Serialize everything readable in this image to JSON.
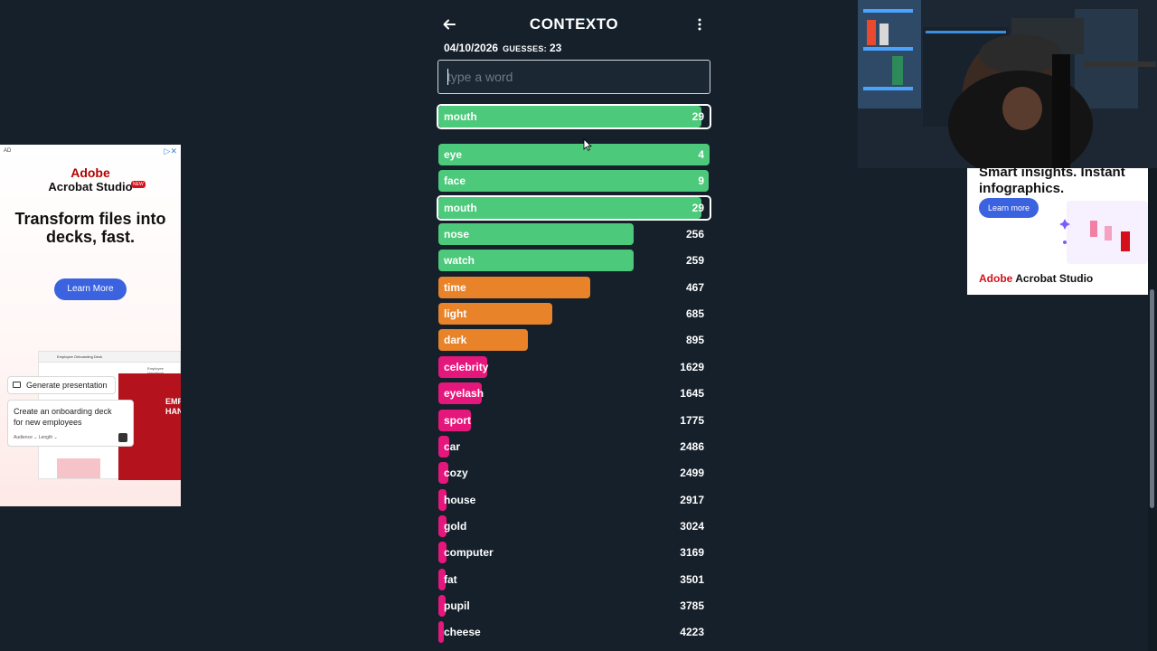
{
  "game": {
    "title": "CONTEXTO",
    "date": "04/10/2026",
    "guesses_label": "GUESSES:",
    "guesses_count": "23",
    "input_placeholder": "type a word",
    "last_guess": {
      "word": "mouth",
      "rank": "29",
      "fill": 0.97,
      "color": "#4cc97a"
    },
    "guesses": [
      {
        "word": "eye",
        "rank": "4",
        "fill": 1.0,
        "color": "#4cc97a"
      },
      {
        "word": "face",
        "rank": "9",
        "fill": 0.995,
        "color": "#4cc97a"
      },
      {
        "word": "mouth",
        "rank": "29",
        "fill": 0.97,
        "color": "#4cc97a",
        "highlight": true
      },
      {
        "word": "nose",
        "rank": "256",
        "fill": 0.72,
        "color": "#4cc97a"
      },
      {
        "word": "watch",
        "rank": "259",
        "fill": 0.72,
        "color": "#4cc97a"
      },
      {
        "word": "time",
        "rank": "467",
        "fill": 0.56,
        "color": "#e8832a"
      },
      {
        "word": "light",
        "rank": "685",
        "fill": 0.42,
        "color": "#e8832a"
      },
      {
        "word": "dark",
        "rank": "895",
        "fill": 0.33,
        "color": "#e8832a"
      },
      {
        "word": "celebrity",
        "rank": "1629",
        "fill": 0.18,
        "color": "#e6177c"
      },
      {
        "word": "eyelash",
        "rank": "1645",
        "fill": 0.16,
        "color": "#e6177c"
      },
      {
        "word": "sport",
        "rank": "1775",
        "fill": 0.12,
        "color": "#e6177c"
      },
      {
        "word": "car",
        "rank": "2486",
        "fill": 0.04,
        "color": "#e6177c"
      },
      {
        "word": "cozy",
        "rank": "2499",
        "fill": 0.035,
        "color": "#e6177c"
      },
      {
        "word": "house",
        "rank": "2917",
        "fill": 0.03,
        "color": "#e6177c"
      },
      {
        "word": "gold",
        "rank": "3024",
        "fill": 0.03,
        "color": "#e6177c"
      },
      {
        "word": "computer",
        "rank": "3169",
        "fill": 0.03,
        "color": "#e6177c"
      },
      {
        "word": "fat",
        "rank": "3501",
        "fill": 0.025,
        "color": "#e6177c"
      },
      {
        "word": "pupil",
        "rank": "3785",
        "fill": 0.025,
        "color": "#e6177c"
      },
      {
        "word": "cheese",
        "rank": "4223",
        "fill": 0.02,
        "color": "#e6177c"
      }
    ]
  },
  "ad_left": {
    "tag": "AD",
    "brand_line1": "Adobe",
    "brand_line2": "Acrobat Studio",
    "new_badge": "NEW",
    "headline": "Transform files into decks, fast.",
    "button": "Learn More",
    "doc_title": "Employee Onboarding Deck",
    "doc_subtitle": "Employee Handbook",
    "doc_red_text": "EMP HAN",
    "generate_label": "Generate presentation",
    "prompt_text": "Create an onboarding deck for new employees",
    "prompt_options": "Audience ⌄   Length ⌄"
  },
  "ad_right": {
    "headline": "Smart insights. Instant infographics.",
    "button": "Learn more",
    "brand_prefix": "Adobe",
    "brand_rest": " Acrobat Studio"
  }
}
